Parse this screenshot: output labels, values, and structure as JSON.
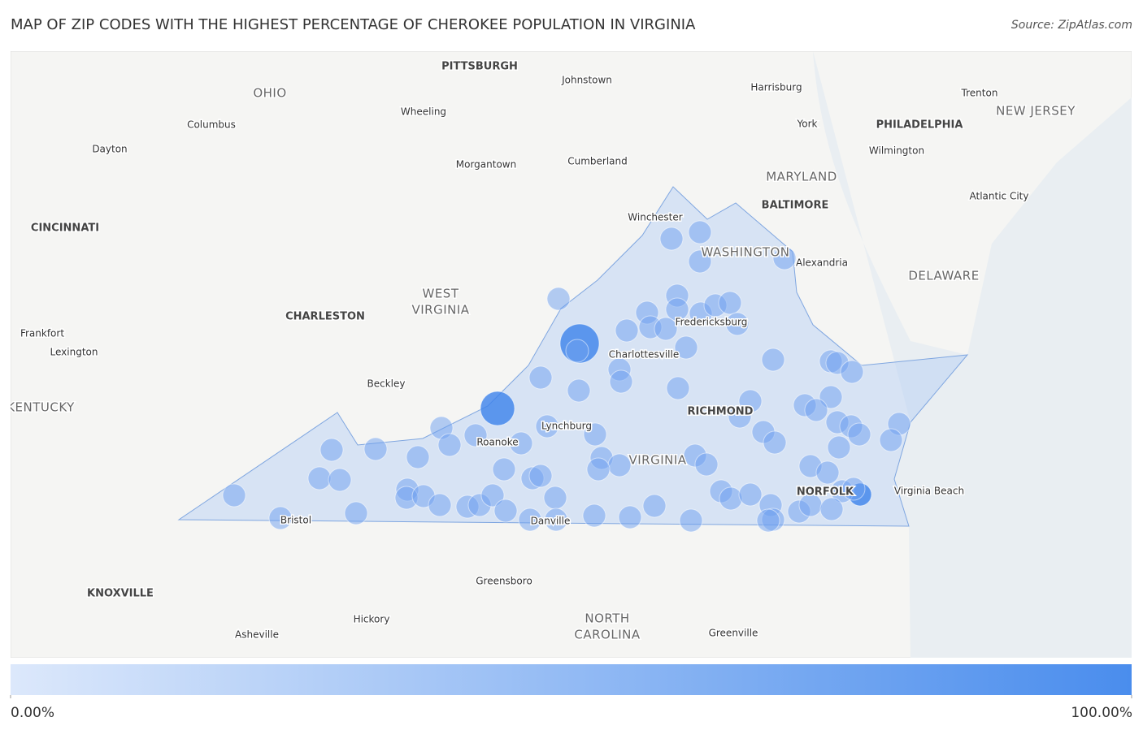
{
  "header": {
    "title": "MAP OF ZIP CODES WITH THE HIGHEST PERCENTAGE OF CHEROKEE POPULATION IN VIRGINIA",
    "source": "Source: ZipAtlas.com"
  },
  "places": [
    "PITTSBURGH",
    "Johnstown",
    "OHIO",
    "Harrisburg",
    "Trenton",
    "NEW JERSEY",
    "Wheeling",
    "Columbus",
    "York",
    "PHILADELPHIA",
    "Dayton",
    "Wilmington",
    "Morgantown",
    "Cumberland",
    "MARYLAND",
    "Atlantic City",
    "BALTIMORE",
    "Winchester",
    "CINCINNATI",
    "WASHINGTON",
    "Alexandria",
    "DELAWARE",
    "WEST",
    "VIRGINIA",
    "CHARLESTON",
    "Fredericksburg",
    "Frankfort",
    "Lexington",
    "Charlottesville",
    "Beckley",
    "KENTUCKY",
    "RICHMOND",
    "Lynchburg",
    "Roanoke",
    "VIRGINIA",
    "NORFOLK",
    "Virginia Beach",
    "Bristol",
    "Danville",
    "Greensboro",
    "KNOXVILLE",
    "NORTH",
    "CAROLINA",
    "Hickory",
    "Asheville",
    "Greenville"
  ],
  "legend": {
    "min": {
      "value": 0,
      "label": "0.00%"
    },
    "max": {
      "value": 100,
      "label": "100.00%"
    }
  }
}
